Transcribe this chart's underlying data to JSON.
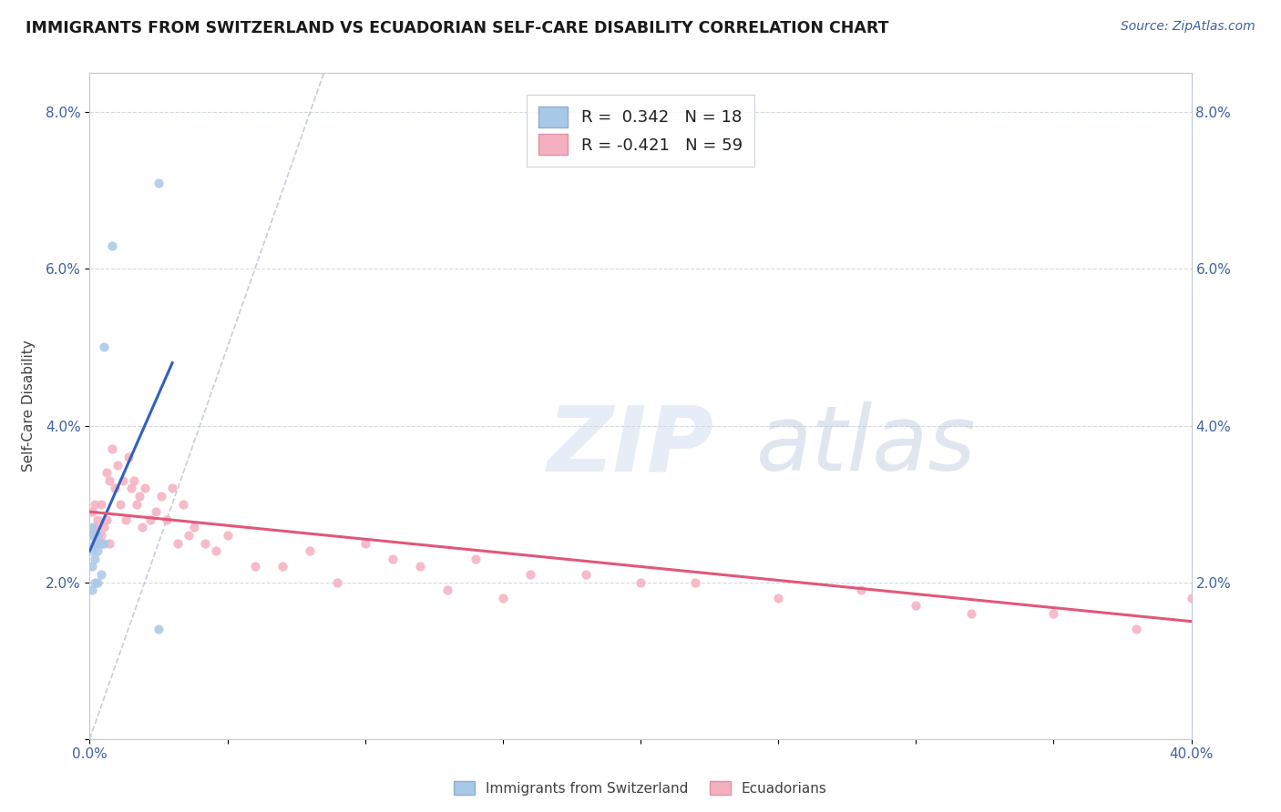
{
  "title": "IMMIGRANTS FROM SWITZERLAND VS ECUADORIAN SELF-CARE DISABILITY CORRELATION CHART",
  "source": "Source: ZipAtlas.com",
  "ylabel": "Self-Care Disability",
  "xlim": [
    0.0,
    0.4
  ],
  "ylim": [
    0.0,
    0.085
  ],
  "xticks": [
    0.0,
    0.05,
    0.1,
    0.15,
    0.2,
    0.25,
    0.3,
    0.35,
    0.4
  ],
  "yticks": [
    0.0,
    0.02,
    0.04,
    0.06,
    0.08
  ],
  "swiss_r": 0.342,
  "swiss_n": 18,
  "ecuador_r": -0.421,
  "ecuador_n": 59,
  "swiss_color": "#a8c8e8",
  "ecuador_color": "#f5b0c0",
  "swiss_line_color": "#3060c0",
  "ecuador_line_color": "#e05878",
  "swiss_points_x": [
    0.001,
    0.001,
    0.001,
    0.001,
    0.001,
    0.002,
    0.002,
    0.002,
    0.003,
    0.003,
    0.003,
    0.004,
    0.004,
    0.005,
    0.005,
    0.008,
    0.025,
    0.025
  ],
  "swiss_points_y": [
    0.019,
    0.022,
    0.024,
    0.026,
    0.027,
    0.02,
    0.023,
    0.025,
    0.02,
    0.024,
    0.026,
    0.021,
    0.025,
    0.05,
    0.025,
    0.063,
    0.071,
    0.014
  ],
  "ecuador_points_x": [
    0.001,
    0.001,
    0.002,
    0.002,
    0.003,
    0.003,
    0.004,
    0.004,
    0.005,
    0.006,
    0.006,
    0.007,
    0.007,
    0.008,
    0.009,
    0.01,
    0.011,
    0.012,
    0.013,
    0.014,
    0.015,
    0.016,
    0.017,
    0.018,
    0.019,
    0.02,
    0.022,
    0.024,
    0.026,
    0.028,
    0.03,
    0.032,
    0.034,
    0.036,
    0.038,
    0.042,
    0.046,
    0.05,
    0.06,
    0.07,
    0.08,
    0.09,
    0.1,
    0.11,
    0.12,
    0.13,
    0.14,
    0.15,
    0.16,
    0.18,
    0.2,
    0.22,
    0.25,
    0.28,
    0.3,
    0.32,
    0.35,
    0.38,
    0.4
  ],
  "ecuador_points_y": [
    0.026,
    0.029,
    0.027,
    0.03,
    0.025,
    0.028,
    0.026,
    0.03,
    0.027,
    0.034,
    0.028,
    0.033,
    0.025,
    0.037,
    0.032,
    0.035,
    0.03,
    0.033,
    0.028,
    0.036,
    0.032,
    0.033,
    0.03,
    0.031,
    0.027,
    0.032,
    0.028,
    0.029,
    0.031,
    0.028,
    0.032,
    0.025,
    0.03,
    0.026,
    0.027,
    0.025,
    0.024,
    0.026,
    0.022,
    0.022,
    0.024,
    0.02,
    0.025,
    0.023,
    0.022,
    0.019,
    0.023,
    0.018,
    0.021,
    0.021,
    0.02,
    0.02,
    0.018,
    0.019,
    0.017,
    0.016,
    0.016,
    0.014,
    0.018
  ],
  "swiss_line_x": [
    0.0,
    0.03
  ],
  "swiss_line_y": [
    0.024,
    0.048
  ],
  "ecuador_line_x": [
    0.0,
    0.4
  ],
  "ecuador_line_y": [
    0.029,
    0.015
  ],
  "ref_line_x": [
    0.0,
    0.085
  ],
  "ref_line_y": [
    0.0,
    0.085
  ]
}
